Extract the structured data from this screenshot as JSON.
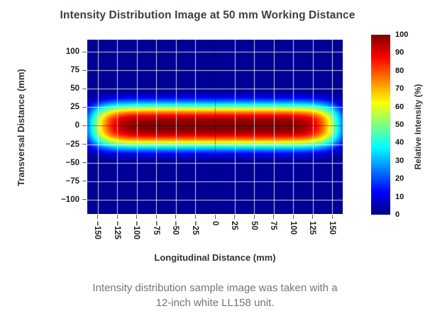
{
  "chart_data": {
    "type": "heatmap",
    "title": "Intensity Distribution Image at 50 mm Working Distance",
    "xlabel": "Longitudinal Distance (mm)",
    "ylabel": "Transversal Distance (mm)",
    "colorbar_label": "Relative Intensity (%)",
    "caption_lines": [
      "Intensity distribution sample image was taken with a",
      "12-inch white LL158 unit."
    ],
    "colormap": "jet",
    "xlim": [
      -163.6,
      163.6
    ],
    "ylim": [
      -119.3,
      116.4
    ],
    "x_ticks": {
      "values": [
        -150,
        -125,
        -100,
        -75,
        -50,
        -25,
        0,
        25,
        50,
        75,
        100,
        125,
        150
      ],
      "labels": [
        "−150",
        "−125",
        "−100",
        "−75",
        "−50",
        "−25",
        "0",
        "25",
        "50",
        "75",
        "100",
        "125",
        "150"
      ]
    },
    "y_ticks": {
      "values": [
        100,
        75,
        50,
        25,
        0,
        -25,
        -50,
        -75,
        -100
      ],
      "labels": [
        "100",
        "75",
        "50",
        "25",
        "0",
        "−25",
        "−50",
        "−75",
        "−100"
      ]
    },
    "colorbar_ticks": {
      "range": [
        0,
        100
      ],
      "values": [
        100,
        90,
        80,
        70,
        60,
        50,
        40,
        30,
        20,
        10,
        0
      ],
      "labels": [
        "100",
        "90",
        "80",
        "70",
        "60",
        "50",
        "40",
        "30",
        "20",
        "10",
        "0"
      ]
    },
    "grid": {
      "show": true,
      "spacing_mm": 25,
      "color": "rgba(255,255,255,0.8)",
      "zero_axis_color": "rgba(0,0,0,0.45)"
    },
    "intensity_model": {
      "formula": "I(x,y) = 100 * exp(-((|x|/158)^10 + (|y|/29)^2.7))",
      "peak_pct": 100,
      "x_scale_mm": 158,
      "x_exponent": 10,
      "y_scale_mm": 29,
      "y_exponent": 2.7,
      "red_core_extent_mm": {
        "x": 140,
        "y": 18
      },
      "center_mm": [
        0,
        0
      ]
    },
    "profiles": {
      "along_x_at_y0": {
        "x_mm": [
          0,
          25,
          50,
          75,
          100,
          125,
          140,
          150,
          155,
          160,
          163
        ],
        "intensity_pct": [
          100,
          100,
          100,
          100,
          99,
          91,
          74,
          55,
          44,
          32,
          26
        ]
      },
      "along_y_at_x0": {
        "y_mm": [
          0,
          5,
          10,
          15,
          20,
          25,
          30,
          35,
          40,
          45,
          50,
          60
        ],
        "intensity_pct": [
          100,
          99,
          95,
          85,
          69,
          51,
          33,
          19,
          9,
          4,
          1,
          0
        ]
      }
    },
    "colors": {
      "title_text": "#3c4043",
      "caption_text": "#757575",
      "low_background": "#000080",
      "peak_core": "#800000"
    }
  }
}
